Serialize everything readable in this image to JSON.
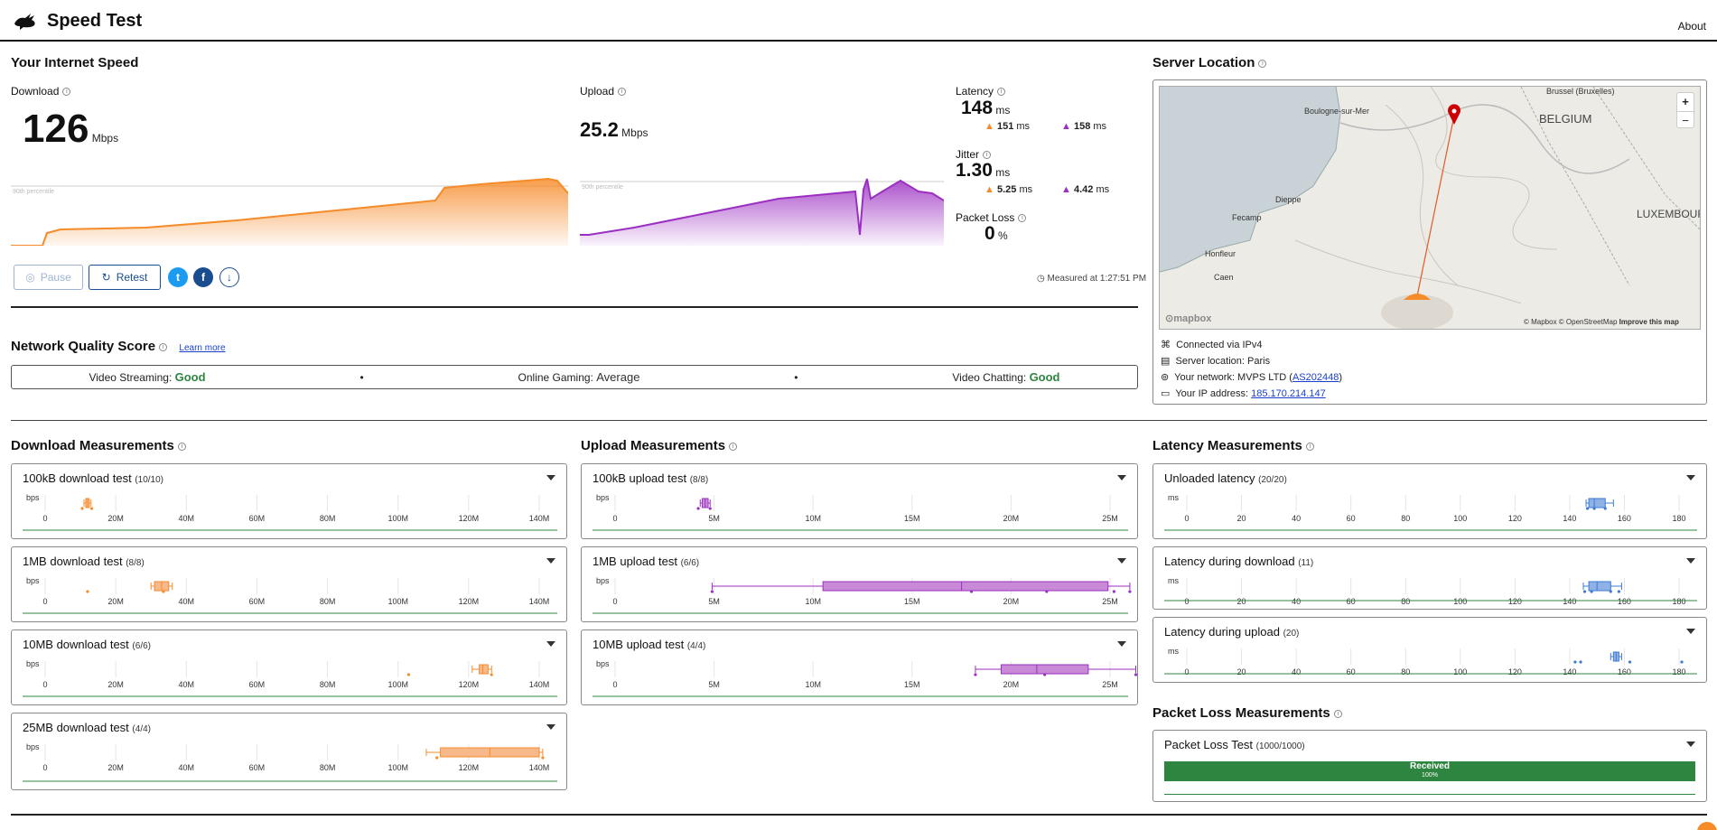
{
  "header": {
    "title": "Speed Test",
    "about": "About"
  },
  "speed": {
    "title": "Your Internet Speed",
    "download": {
      "label": "Download",
      "value": "126",
      "unit": "Mbps",
      "percentile": "90th percentile"
    },
    "upload": {
      "label": "Upload",
      "value": "25.2",
      "unit": "Mbps",
      "percentile": "90th percentile"
    },
    "latency": {
      "label": "Latency",
      "value": "148",
      "unit": "ms",
      "down": "151",
      "up": "158",
      "sub_unit": "ms"
    },
    "jitter": {
      "label": "Jitter",
      "value": "1.30",
      "unit": "ms",
      "down": "5.25",
      "up": "4.42",
      "sub_unit": "ms"
    },
    "packet_loss": {
      "label": "Packet Loss",
      "value": "0",
      "unit": "%"
    },
    "buttons": {
      "pause": "Pause",
      "retest": "Retest"
    },
    "measured": "Measured at 1:27:51 PM"
  },
  "quality": {
    "title": "Network Quality Score",
    "learn_more": "Learn more",
    "items": [
      {
        "label": "Video Streaming:",
        "value": "Good"
      },
      {
        "label": "Online Gaming:",
        "value": "Average"
      },
      {
        "label": "Video Chatting:",
        "value": "Good"
      }
    ],
    "separator": "•"
  },
  "server": {
    "title": "Server Location",
    "map_labels": {
      "brussels": "Brussel (Bruxelles)",
      "boulogne": "Boulogne-sur-Mer",
      "belgium": "BELGIUM",
      "dieppe": "Dieppe",
      "fecamp": "Fecamp",
      "honfleur": "Honfleur",
      "caen": "Caen",
      "luxembourg": "LUXEMBOURG",
      "mapbox": "mapbox",
      "attribution": "© Mapbox © OpenStreetMap",
      "improve": "Improve this map",
      "zoom_in": "+",
      "zoom_out": "−"
    },
    "connected": "Connected via IPv4",
    "location": "Server location: Paris",
    "network_label": "Your network: MVPS LTD (",
    "network_as": "AS202448",
    "network_close": ")",
    "ip_label": "Your IP address: ",
    "ip": "185.170.214.147"
  },
  "download_measurements": {
    "title": "Download Measurements",
    "axis_unit": "bps",
    "ticks": [
      "0",
      "20M",
      "40M",
      "60M",
      "80M",
      "100M",
      "120M",
      "140M"
    ],
    "tests": [
      {
        "name": "100kB download test",
        "count": "(10/10)",
        "box": [
          11,
          11.5,
          12,
          12.5,
          13
        ],
        "points": [
          10.5,
          13.2
        ]
      },
      {
        "name": "1MB download test",
        "count": "(8/8)",
        "box": [
          30,
          31,
          33,
          35,
          36
        ],
        "points": [
          12,
          33.5
        ]
      },
      {
        "name": "10MB download test",
        "count": "(6/6)",
        "box": [
          121,
          123,
          124,
          125.5,
          126.5
        ],
        "points": [
          103,
          126.5
        ]
      },
      {
        "name": "25MB download test",
        "count": "(4/4)",
        "box": [
          108,
          112,
          126,
          140,
          141
        ],
        "points": [
          111,
          141
        ]
      }
    ]
  },
  "upload_measurements": {
    "title": "Upload Measurements",
    "axis_unit": "bps",
    "ticks": [
      "0",
      "5M",
      "10M",
      "15M",
      "20M",
      "25M"
    ],
    "tests": [
      {
        "name": "100kB upload test",
        "count": "(8/8)",
        "box": [
          4.3,
          4.4,
          4.55,
          4.7,
          4.8
        ],
        "points": [
          4.2,
          4.8
        ]
      },
      {
        "name": "1MB upload test",
        "count": "(6/6)",
        "box": [
          4.9,
          10.5,
          17.5,
          24.9,
          26
        ],
        "points": [
          4.9,
          18,
          21.8,
          25.2,
          26
        ]
      },
      {
        "name": "10MB upload test",
        "count": "(4/4)",
        "box": [
          18.2,
          19.5,
          21.3,
          23.9,
          26.3
        ],
        "points": [
          18.2,
          21.7,
          26.3
        ]
      }
    ]
  },
  "latency_measurements": {
    "title": "Latency Measurements",
    "axis_unit": "ms",
    "ticks": [
      "0",
      "20",
      "40",
      "60",
      "80",
      "100",
      "120",
      "140",
      "160",
      "180"
    ],
    "tests": [
      {
        "name": "Unloaded latency",
        "count": "(20/20)",
        "box": [
          146,
          147,
          149,
          153,
          156
        ],
        "points": [
          146.5,
          149,
          153
        ]
      },
      {
        "name": "Latency during download",
        "count": "(11)",
        "box": [
          145,
          147,
          150,
          155,
          159
        ],
        "points": [
          145.5,
          148,
          155,
          158
        ]
      },
      {
        "name": "Latency during upload",
        "count": "(20)",
        "box": [
          155,
          156,
          157,
          158,
          159
        ],
        "points": [
          142,
          144,
          162,
          181
        ]
      }
    ]
  },
  "packet_loss_measurements": {
    "title": "Packet Loss Measurements",
    "test": {
      "name": "Packet Loss Test",
      "count": "(1000/1000)",
      "bar_label": "Received",
      "bar_pct": "100%",
      "received_fraction": 1.0
    }
  },
  "colors": {
    "download": "#f68b2a",
    "upload": "#9b2fc1",
    "latency": "#3d7bd0",
    "good": "#2e8540",
    "brand": "#1a4d8f"
  }
}
